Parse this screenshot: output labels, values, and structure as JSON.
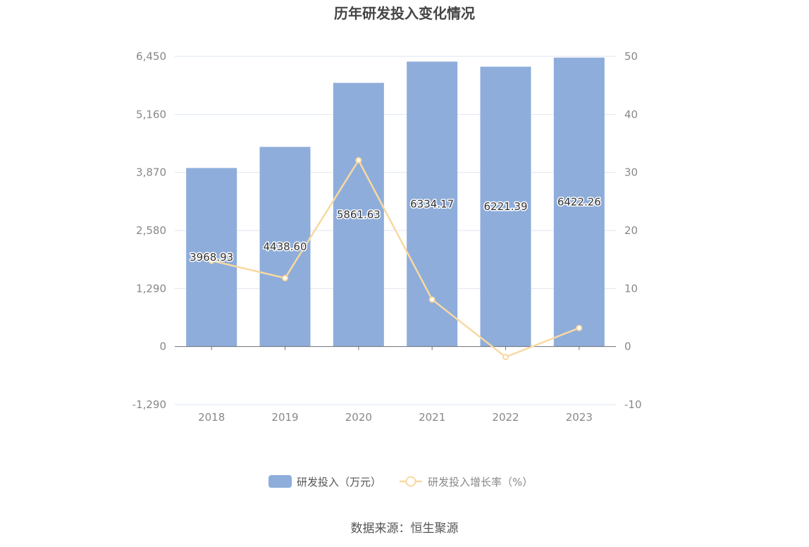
{
  "chart_data": {
    "type": "bar",
    "title": "历年研发投入变化情况",
    "categories": [
      "2018",
      "2019",
      "2020",
      "2021",
      "2022",
      "2023"
    ],
    "series": [
      {
        "name": "研发投入（万元）",
        "type": "bar",
        "axis": "left",
        "values": [
          3968.93,
          4438.6,
          5861.63,
          6334.17,
          6221.39,
          6422.26
        ],
        "labels": [
          "3968.93",
          "4438.60",
          "5861.63",
          "6334.17",
          "6221.39",
          "6422.26"
        ],
        "color": "#8eaddb"
      },
      {
        "name": "研发投入增长率（%）",
        "type": "line",
        "axis": "right",
        "values": [
          14.8,
          11.8,
          32.1,
          8.1,
          -1.8,
          3.2
        ],
        "color": "#f8d9a0"
      }
    ],
    "y_left": {
      "ylim": [
        -1290,
        6450
      ],
      "ticks": [
        -1290,
        0,
        1290,
        2580,
        3870,
        5160,
        6450
      ],
      "tick_labels": [
        "-1,290",
        "0",
        "1,290",
        "2,580",
        "3,870",
        "5,160",
        "6,450"
      ]
    },
    "y_right": {
      "ylim": [
        -10,
        50
      ],
      "ticks": [
        -10,
        0,
        10,
        20,
        30,
        40,
        50
      ],
      "tick_labels": [
        "-10",
        "0",
        "10",
        "20",
        "30",
        "40",
        "50"
      ]
    },
    "grid": true,
    "legend_position": "bottom-center"
  },
  "source_text": "数据来源：恒生聚源"
}
